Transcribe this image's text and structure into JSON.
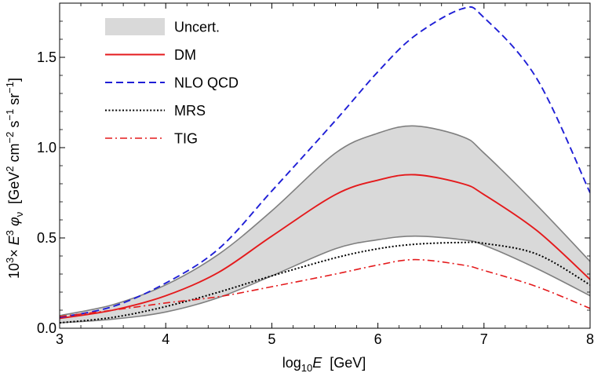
{
  "chart_data": {
    "type": "line",
    "xlabel": {
      "main": "log",
      "sub": "10",
      "italic": "E",
      "rest": "  [GeV]"
    },
    "ylabel": {
      "prefix": "10",
      "prefix_sup": "3",
      "times": "× ",
      "E": "E",
      "E_sup": "3",
      "phi": " φ",
      "phi_sub": "ν",
      "bracket_open": "  [GeV",
      "s1": "2",
      "cm": " cm",
      "s2": "−2",
      "s": " s",
      "s3": "−1",
      "sr": " sr",
      "s4": "−1",
      "bracket_close": "]"
    },
    "xlim": [
      3,
      8
    ],
    "ylim": [
      0,
      1.8
    ],
    "x_ticks": [
      3,
      4,
      5,
      6,
      7,
      8
    ],
    "x_tick_labels": [
      "3",
      "4",
      "5",
      "6",
      "7",
      "8"
    ],
    "y_ticks": [
      0,
      0.5,
      1.0,
      1.5
    ],
    "y_tick_labels": [
      "0.0",
      "0.5",
      "1.0",
      "1.5"
    ],
    "x": [
      3.0,
      3.5,
      4.0,
      4.5,
      5.0,
      5.6,
      6.0,
      6.35,
      6.8,
      7.0,
      7.5,
      8.0
    ],
    "band": {
      "name": "Uncert.",
      "color": "#d9d9d9",
      "edge_color": "#7f7f7f",
      "upper": [
        0.07,
        0.13,
        0.24,
        0.41,
        0.65,
        0.97,
        1.08,
        1.12,
        1.06,
        0.97,
        0.68,
        0.37
      ],
      "lower": [
        0.03,
        0.05,
        0.09,
        0.17,
        0.29,
        0.44,
        0.49,
        0.51,
        0.49,
        0.46,
        0.33,
        0.18
      ]
    },
    "series": [
      {
        "name": "DM",
        "color": "#e41a1c",
        "dash": "",
        "width": 1.9,
        "values": [
          0.055,
          0.1,
          0.18,
          0.31,
          0.51,
          0.74,
          0.82,
          0.85,
          0.8,
          0.74,
          0.54,
          0.27
        ]
      },
      {
        "name": "NLO QCD",
        "color": "#1f1fd6",
        "dash": "9,5",
        "width": 1.9,
        "values": [
          0.06,
          0.12,
          0.25,
          0.44,
          0.76,
          1.15,
          1.42,
          1.62,
          1.77,
          1.72,
          1.38,
          0.75
        ]
      },
      {
        "name": "MRS",
        "color": "#000000",
        "dash": "2,2.4",
        "width": 2.0,
        "values": [
          0.03,
          0.06,
          0.12,
          0.2,
          0.29,
          0.39,
          0.44,
          0.465,
          0.475,
          0.47,
          0.41,
          0.24
        ]
      },
      {
        "name": "TIG",
        "color": "#e41a1c",
        "dash": "9,4,2,4",
        "width": 1.6,
        "values": [
          0.065,
          0.1,
          0.14,
          0.175,
          0.23,
          0.3,
          0.35,
          0.38,
          0.35,
          0.32,
          0.23,
          0.11
        ]
      }
    ],
    "legend_position": "top-left"
  }
}
